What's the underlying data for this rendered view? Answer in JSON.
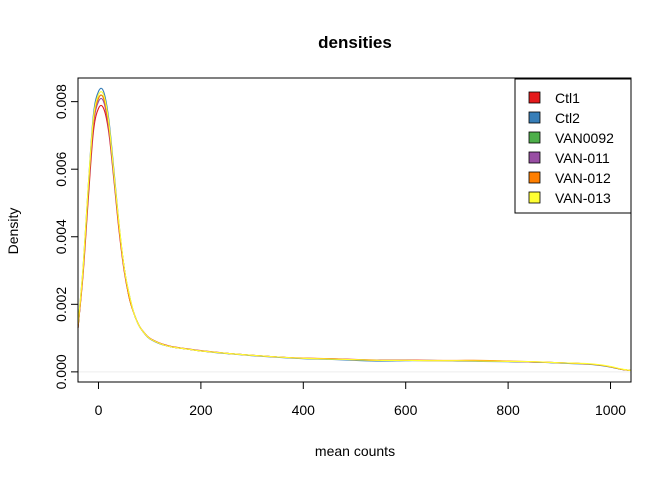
{
  "chart_data": {
    "type": "line",
    "title": "densities",
    "xlabel": "mean counts",
    "ylabel": "Density",
    "xlim": [
      -40,
      1040
    ],
    "ylim": [
      -0.0003,
      0.0087
    ],
    "x_ticks": [
      0,
      200,
      400,
      600,
      800,
      1000
    ],
    "x_tick_labels": [
      "0",
      "200",
      "400",
      "600",
      "800",
      "1000"
    ],
    "y_ticks": [
      0,
      0.002,
      0.004,
      0.006,
      0.008
    ],
    "y_tick_labels": [
      "0.000",
      "0.002",
      "0.004",
      "0.006",
      "0.008"
    ],
    "grid": false,
    "legend_position": "top-right",
    "x": [
      -40,
      -30,
      -20,
      -10,
      0,
      10,
      20,
      30,
      40,
      50,
      60,
      70,
      80,
      90,
      100,
      120,
      140,
      160,
      180,
      200,
      250,
      300,
      350,
      400,
      450,
      500,
      550,
      600,
      650,
      700,
      750,
      800,
      850,
      900,
      950,
      980,
      1000,
      1020,
      1040
    ],
    "series": [
      {
        "name": "Ctl1",
        "color": "#E41A1C",
        "values": [
          0.0013,
          0.0029,
          0.0051,
          0.0071,
          0.0078,
          0.0078,
          0.0071,
          0.0057,
          0.0042,
          0.003,
          0.0022,
          0.0017,
          0.00135,
          0.00115,
          0.001,
          0.00085,
          0.00076,
          0.00071,
          0.00067,
          0.00063,
          0.00055,
          0.00049,
          0.00044,
          0.0004,
          0.00039,
          0.00037,
          0.00035,
          0.00035,
          0.00034,
          0.00033,
          0.00033,
          0.00031,
          0.00029,
          0.00027,
          0.00024,
          0.0002,
          0.00015,
          8e-05,
          4e-05
        ]
      },
      {
        "name": "Ctl2",
        "color": "#377EB8",
        "values": [
          0.0014,
          0.0031,
          0.0055,
          0.0076,
          0.0083,
          0.0083,
          0.0075,
          0.006,
          0.0044,
          0.0031,
          0.0023,
          0.0017,
          0.00135,
          0.00113,
          0.00098,
          0.00083,
          0.00075,
          0.0007,
          0.00066,
          0.00062,
          0.00054,
          0.00048,
          0.00043,
          0.00039,
          0.00037,
          0.00034,
          0.00032,
          0.00033,
          0.00034,
          0.00032,
          0.00031,
          0.0003,
          0.00029,
          0.00026,
          0.00023,
          0.00019,
          0.00014,
          8e-05,
          4e-05
        ]
      },
      {
        "name": "VAN0092",
        "color": "#4DAF4A",
        "values": [
          0.0013,
          0.003,
          0.0053,
          0.0074,
          0.0081,
          0.0081,
          0.0073,
          0.0058,
          0.0043,
          0.0031,
          0.0022,
          0.0017,
          0.00135,
          0.00114,
          0.00099,
          0.00084,
          0.00075,
          0.0007,
          0.00066,
          0.00062,
          0.00055,
          0.00049,
          0.00044,
          0.0004,
          0.00038,
          0.00036,
          0.00034,
          0.00034,
          0.00033,
          0.00033,
          0.00032,
          0.00031,
          0.00029,
          0.00027,
          0.00024,
          0.0002,
          0.00015,
          8e-05,
          4e-05
        ]
      },
      {
        "name": "VAN-011",
        "color": "#984EA3",
        "values": [
          0.0013,
          0.003,
          0.0053,
          0.0073,
          0.008,
          0.008,
          0.0072,
          0.0058,
          0.0043,
          0.0031,
          0.0022,
          0.0017,
          0.00135,
          0.00114,
          0.00099,
          0.00084,
          0.00075,
          0.0007,
          0.00066,
          0.00062,
          0.00055,
          0.00049,
          0.00044,
          0.0004,
          0.00039,
          0.00036,
          0.00034,
          0.00034,
          0.00033,
          0.00033,
          0.00032,
          0.00031,
          0.00029,
          0.00027,
          0.00024,
          0.0002,
          0.00015,
          8e-05,
          4e-05
        ]
      },
      {
        "name": "VAN-012",
        "color": "#FF7F00",
        "values": [
          0.0013,
          0.003,
          0.0054,
          0.0074,
          0.0081,
          0.0081,
          0.0073,
          0.0059,
          0.0043,
          0.0031,
          0.0022,
          0.0017,
          0.00135,
          0.00114,
          0.00099,
          0.00084,
          0.00075,
          0.0007,
          0.00066,
          0.00062,
          0.00055,
          0.00049,
          0.00044,
          0.00041,
          0.00039,
          0.00036,
          0.00034,
          0.00034,
          0.00034,
          0.00034,
          0.00034,
          0.00032,
          0.0003,
          0.00027,
          0.00024,
          0.0002,
          0.00015,
          8e-05,
          4e-05
        ]
      },
      {
        "name": "VAN-013",
        "color": "#FFFF33",
        "values": [
          0.0014,
          0.0031,
          0.0055,
          0.0075,
          0.0082,
          0.0082,
          0.0074,
          0.0059,
          0.0044,
          0.0031,
          0.0023,
          0.0017,
          0.00135,
          0.00114,
          0.00099,
          0.00084,
          0.00075,
          0.0007,
          0.00066,
          0.00062,
          0.00055,
          0.00049,
          0.00044,
          0.0004,
          0.00038,
          0.00036,
          0.00034,
          0.00034,
          0.00033,
          0.00033,
          0.00032,
          0.00031,
          0.0003,
          0.00027,
          0.00025,
          0.00021,
          0.00016,
          9e-05,
          4e-05
        ]
      }
    ]
  }
}
